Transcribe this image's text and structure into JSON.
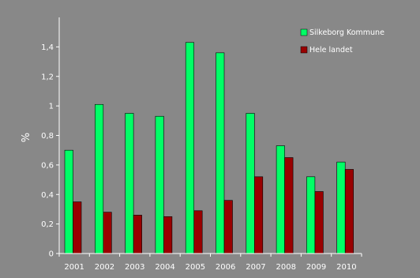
{
  "chart_data": {
    "type": "bar",
    "title": "",
    "xlabel": "",
    "ylabel": "%",
    "ylim": [
      0,
      1.6
    ],
    "yticks": [
      0,
      0.2,
      0.4,
      0.6,
      0.8,
      1,
      1.2,
      1.4
    ],
    "ytick_labels": [
      "0",
      "0,2",
      "0,4",
      "0,6",
      "0,8",
      "1",
      "1,2",
      "1,4"
    ],
    "categories": [
      "2001",
      "2002",
      "2003",
      "2004",
      "2005",
      "2006",
      "2007",
      "2008",
      "2009",
      "2010"
    ],
    "series": [
      {
        "name": "Silkeborg Kommune",
        "color": "#00ff66",
        "values": [
          0.7,
          1.01,
          0.95,
          0.93,
          1.43,
          1.36,
          0.95,
          0.73,
          0.52,
          0.62
        ]
      },
      {
        "name": "Hele landet",
        "color": "#990000",
        "values": [
          0.35,
          0.28,
          0.26,
          0.25,
          0.29,
          0.36,
          0.52,
          0.65,
          0.42,
          0.57
        ]
      }
    ],
    "grid": false,
    "legend": "top-right",
    "background_color": "#888888",
    "axis_color": "#ffffff"
  }
}
